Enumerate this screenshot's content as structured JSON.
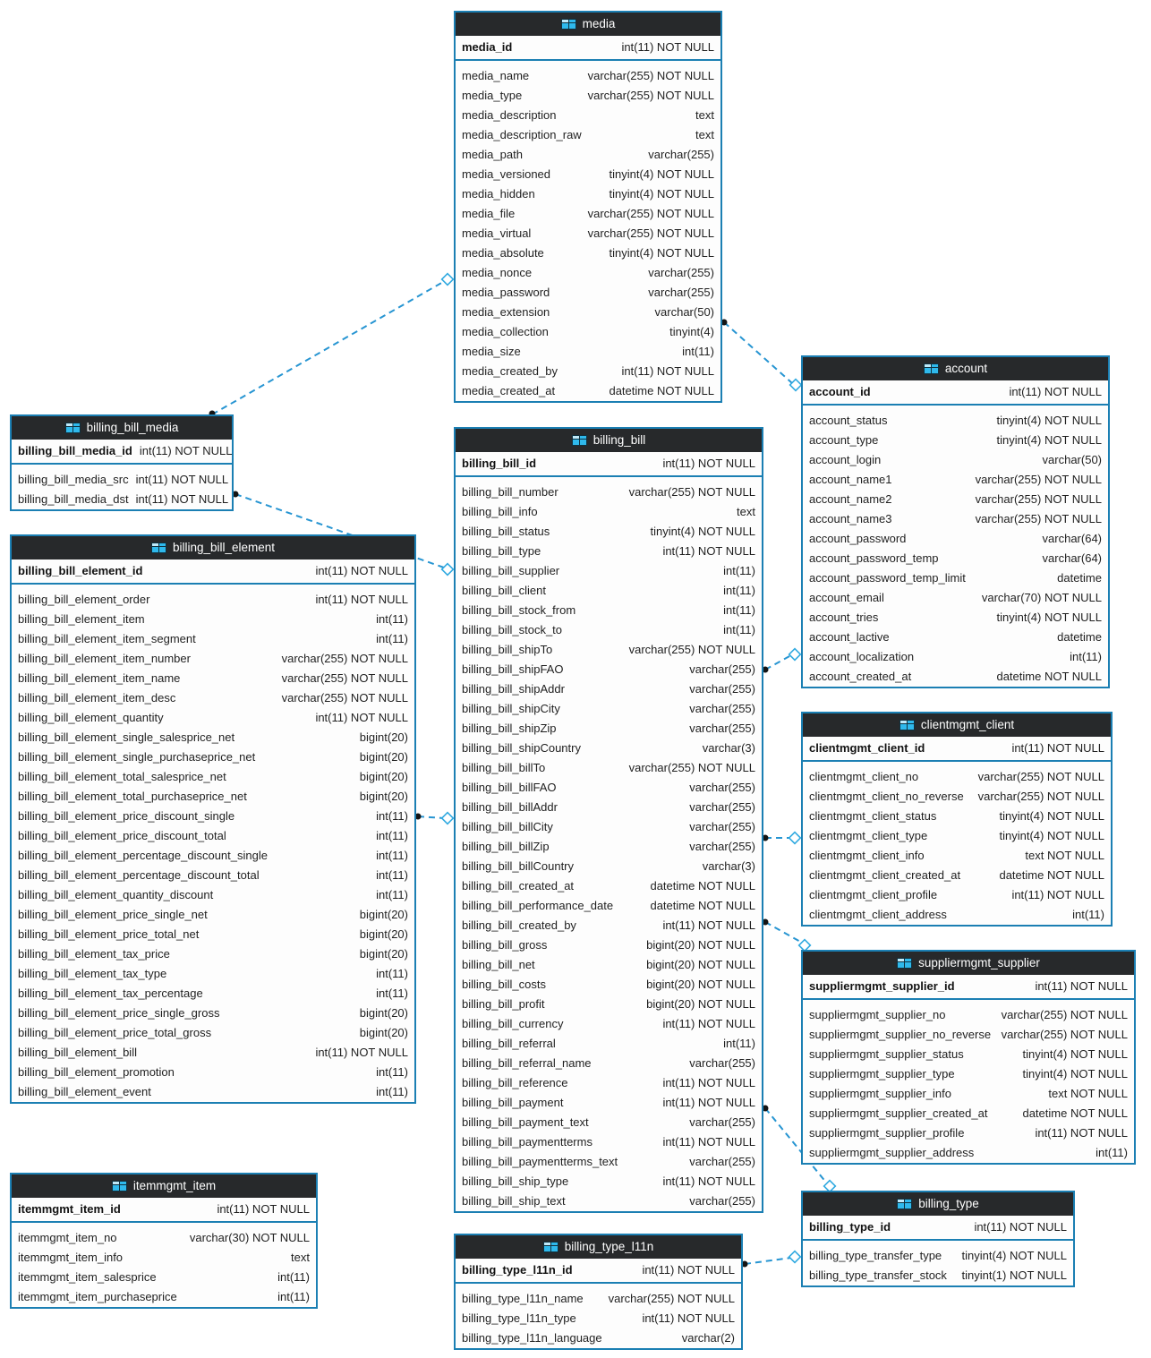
{
  "diagram": {
    "colors": {
      "table_border": "#1b7fb3",
      "header_background": "#27292b",
      "header_text": "#ffffff",
      "relationship_line": "#2795d2",
      "table_icon": "#2fb9ec",
      "row_text": "#1f1f1f"
    },
    "tables": [
      {
        "name": "media",
        "pk": {
          "name": "media_id",
          "type": "int(11) NOT NULL"
        },
        "fields": [
          {
            "name": "media_name",
            "type": "varchar(255) NOT NULL"
          },
          {
            "name": "media_type",
            "type": "varchar(255) NOT NULL"
          },
          {
            "name": "media_description",
            "type": "text"
          },
          {
            "name": "media_description_raw",
            "type": "text"
          },
          {
            "name": "media_path",
            "type": "varchar(255)"
          },
          {
            "name": "media_versioned",
            "type": "tinyint(4) NOT NULL"
          },
          {
            "name": "media_hidden",
            "type": "tinyint(4) NOT NULL"
          },
          {
            "name": "media_file",
            "type": "varchar(255) NOT NULL"
          },
          {
            "name": "media_virtual",
            "type": "varchar(255) NOT NULL"
          },
          {
            "name": "media_absolute",
            "type": "tinyint(4) NOT NULL"
          },
          {
            "name": "media_nonce",
            "type": "varchar(255)"
          },
          {
            "name": "media_password",
            "type": "varchar(255)"
          },
          {
            "name": "media_extension",
            "type": "varchar(50)"
          },
          {
            "name": "media_collection",
            "type": "tinyint(4)"
          },
          {
            "name": "media_size",
            "type": "int(11)"
          },
          {
            "name": "media_created_by",
            "type": "int(11) NOT NULL"
          },
          {
            "name": "media_created_at",
            "type": "datetime NOT NULL"
          }
        ]
      },
      {
        "name": "billing_bill_media",
        "pk": {
          "name": "billing_bill_media_id",
          "type": "int(11) NOT NULL"
        },
        "fields": [
          {
            "name": "billing_bill_media_src",
            "type": "int(11) NOT NULL"
          },
          {
            "name": "billing_bill_media_dst",
            "type": "int(11) NOT NULL"
          }
        ]
      },
      {
        "name": "billing_bill_element",
        "pk": {
          "name": "billing_bill_element_id",
          "type": "int(11) NOT NULL"
        },
        "fields": [
          {
            "name": "billing_bill_element_order",
            "type": "int(11) NOT NULL"
          },
          {
            "name": "billing_bill_element_item",
            "type": "int(11)"
          },
          {
            "name": "billing_bill_element_item_segment",
            "type": "int(11)"
          },
          {
            "name": "billing_bill_element_item_number",
            "type": "varchar(255) NOT NULL"
          },
          {
            "name": "billing_bill_element_item_name",
            "type": "varchar(255) NOT NULL"
          },
          {
            "name": "billing_bill_element_item_desc",
            "type": "varchar(255) NOT NULL"
          },
          {
            "name": "billing_bill_element_quantity",
            "type": "int(11) NOT NULL"
          },
          {
            "name": "billing_bill_element_single_salesprice_net",
            "type": "bigint(20)"
          },
          {
            "name": "billing_bill_element_single_purchaseprice_net",
            "type": "bigint(20)"
          },
          {
            "name": "billing_bill_element_total_salesprice_net",
            "type": "bigint(20)"
          },
          {
            "name": "billing_bill_element_total_purchaseprice_net",
            "type": "bigint(20)"
          },
          {
            "name": "billing_bill_element_price_discount_single",
            "type": "int(11)"
          },
          {
            "name": "billing_bill_element_price_discount_total",
            "type": "int(11)"
          },
          {
            "name": "billing_bill_element_percentage_discount_single",
            "type": "int(11)"
          },
          {
            "name": "billing_bill_element_percentage_discount_total",
            "type": "int(11)"
          },
          {
            "name": "billing_bill_element_quantity_discount",
            "type": "int(11)"
          },
          {
            "name": "billing_bill_element_price_single_net",
            "type": "bigint(20)"
          },
          {
            "name": "billing_bill_element_price_total_net",
            "type": "bigint(20)"
          },
          {
            "name": "billing_bill_element_tax_price",
            "type": "bigint(20)"
          },
          {
            "name": "billing_bill_element_tax_type",
            "type": "int(11)"
          },
          {
            "name": "billing_bill_element_tax_percentage",
            "type": "int(11)"
          },
          {
            "name": "billing_bill_element_price_single_gross",
            "type": "bigint(20)"
          },
          {
            "name": "billing_bill_element_price_total_gross",
            "type": "bigint(20)"
          },
          {
            "name": "billing_bill_element_bill",
            "type": "int(11) NOT NULL"
          },
          {
            "name": "billing_bill_element_promotion",
            "type": "int(11)"
          },
          {
            "name": "billing_bill_element_event",
            "type": "int(11)"
          }
        ]
      },
      {
        "name": "itemmgmt_item",
        "pk": {
          "name": "itemmgmt_item_id",
          "type": "int(11) NOT NULL"
        },
        "fields": [
          {
            "name": "itemmgmt_item_no",
            "type": "varchar(30) NOT NULL"
          },
          {
            "name": "itemmgmt_item_info",
            "type": "text"
          },
          {
            "name": "itemmgmt_item_salesprice",
            "type": "int(11)"
          },
          {
            "name": "itemmgmt_item_purchaseprice",
            "type": "int(11)"
          }
        ]
      },
      {
        "name": "billing_bill",
        "pk": {
          "name": "billing_bill_id",
          "type": "int(11) NOT NULL"
        },
        "fields": [
          {
            "name": "billing_bill_number",
            "type": "varchar(255) NOT NULL"
          },
          {
            "name": "billing_bill_info",
            "type": "text"
          },
          {
            "name": "billing_bill_status",
            "type": "tinyint(4) NOT NULL"
          },
          {
            "name": "billing_bill_type",
            "type": "int(11) NOT NULL"
          },
          {
            "name": "billing_bill_supplier",
            "type": "int(11)"
          },
          {
            "name": "billing_bill_client",
            "type": "int(11)"
          },
          {
            "name": "billing_bill_stock_from",
            "type": "int(11)"
          },
          {
            "name": "billing_bill_stock_to",
            "type": "int(11)"
          },
          {
            "name": "billing_bill_shipTo",
            "type": "varchar(255) NOT NULL"
          },
          {
            "name": "billing_bill_shipFAO",
            "type": "varchar(255)"
          },
          {
            "name": "billing_bill_shipAddr",
            "type": "varchar(255)"
          },
          {
            "name": "billing_bill_shipCity",
            "type": "varchar(255)"
          },
          {
            "name": "billing_bill_shipZip",
            "type": "varchar(255)"
          },
          {
            "name": "billing_bill_shipCountry",
            "type": "varchar(3)"
          },
          {
            "name": "billing_bill_billTo",
            "type": "varchar(255) NOT NULL"
          },
          {
            "name": "billing_bill_billFAO",
            "type": "varchar(255)"
          },
          {
            "name": "billing_bill_billAddr",
            "type": "varchar(255)"
          },
          {
            "name": "billing_bill_billCity",
            "type": "varchar(255)"
          },
          {
            "name": "billing_bill_billZip",
            "type": "varchar(255)"
          },
          {
            "name": "billing_bill_billCountry",
            "type": "varchar(3)"
          },
          {
            "name": "billing_bill_created_at",
            "type": "datetime NOT NULL"
          },
          {
            "name": "billing_bill_performance_date",
            "type": "datetime NOT NULL"
          },
          {
            "name": "billing_bill_created_by",
            "type": "int(11) NOT NULL"
          },
          {
            "name": "billing_bill_gross",
            "type": "bigint(20) NOT NULL"
          },
          {
            "name": "billing_bill_net",
            "type": "bigint(20) NOT NULL"
          },
          {
            "name": "billing_bill_costs",
            "type": "bigint(20) NOT NULL"
          },
          {
            "name": "billing_bill_profit",
            "type": "bigint(20) NOT NULL"
          },
          {
            "name": "billing_bill_currency",
            "type": "int(11) NOT NULL"
          },
          {
            "name": "billing_bill_referral",
            "type": "int(11)"
          },
          {
            "name": "billing_bill_referral_name",
            "type": "varchar(255)"
          },
          {
            "name": "billing_bill_reference",
            "type": "int(11) NOT NULL"
          },
          {
            "name": "billing_bill_payment",
            "type": "int(11) NOT NULL"
          },
          {
            "name": "billing_bill_payment_text",
            "type": "varchar(255)"
          },
          {
            "name": "billing_bill_paymentterms",
            "type": "int(11) NOT NULL"
          },
          {
            "name": "billing_bill_paymentterms_text",
            "type": "varchar(255)"
          },
          {
            "name": "billing_bill_ship_type",
            "type": "int(11) NOT NULL"
          },
          {
            "name": "billing_bill_ship_text",
            "type": "varchar(255)"
          }
        ]
      },
      {
        "name": "billing_type_l11n",
        "pk": {
          "name": "billing_type_l11n_id",
          "type": "int(11) NOT NULL"
        },
        "fields": [
          {
            "name": "billing_type_l11n_name",
            "type": "varchar(255) NOT NULL"
          },
          {
            "name": "billing_type_l11n_type",
            "type": "int(11) NOT NULL"
          },
          {
            "name": "billing_type_l11n_language",
            "type": "varchar(2)"
          }
        ]
      },
      {
        "name": "account",
        "pk": {
          "name": "account_id",
          "type": "int(11) NOT NULL"
        },
        "fields": [
          {
            "name": "account_status",
            "type": "tinyint(4) NOT NULL"
          },
          {
            "name": "account_type",
            "type": "tinyint(4) NOT NULL"
          },
          {
            "name": "account_login",
            "type": "varchar(50)"
          },
          {
            "name": "account_name1",
            "type": "varchar(255) NOT NULL"
          },
          {
            "name": "account_name2",
            "type": "varchar(255) NOT NULL"
          },
          {
            "name": "account_name3",
            "type": "varchar(255) NOT NULL"
          },
          {
            "name": "account_password",
            "type": "varchar(64)"
          },
          {
            "name": "account_password_temp",
            "type": "varchar(64)"
          },
          {
            "name": "account_password_temp_limit",
            "type": "datetime"
          },
          {
            "name": "account_email",
            "type": "varchar(70) NOT NULL"
          },
          {
            "name": "account_tries",
            "type": "tinyint(4) NOT NULL"
          },
          {
            "name": "account_lactive",
            "type": "datetime"
          },
          {
            "name": "account_localization",
            "type": "int(11)"
          },
          {
            "name": "account_created_at",
            "type": "datetime NOT NULL"
          }
        ]
      },
      {
        "name": "clientmgmt_client",
        "pk": {
          "name": "clientmgmt_client_id",
          "type": "int(11) NOT NULL"
        },
        "fields": [
          {
            "name": "clientmgmt_client_no",
            "type": "varchar(255) NOT NULL"
          },
          {
            "name": "clientmgmt_client_no_reverse",
            "type": "varchar(255) NOT NULL"
          },
          {
            "name": "clientmgmt_client_status",
            "type": "tinyint(4) NOT NULL"
          },
          {
            "name": "clientmgmt_client_type",
            "type": "tinyint(4) NOT NULL"
          },
          {
            "name": "clientmgmt_client_info",
            "type": "text NOT NULL"
          },
          {
            "name": "clientmgmt_client_created_at",
            "type": "datetime NOT NULL"
          },
          {
            "name": "clientmgmt_client_profile",
            "type": "int(11) NOT NULL"
          },
          {
            "name": "clientmgmt_client_address",
            "type": "int(11)"
          }
        ]
      },
      {
        "name": "suppliermgmt_supplier",
        "pk": {
          "name": "suppliermgmt_supplier_id",
          "type": "int(11) NOT NULL"
        },
        "fields": [
          {
            "name": "suppliermgmt_supplier_no",
            "type": "varchar(255) NOT NULL"
          },
          {
            "name": "suppliermgmt_supplier_no_reverse",
            "type": "varchar(255) NOT NULL"
          },
          {
            "name": "suppliermgmt_supplier_status",
            "type": "tinyint(4) NOT NULL"
          },
          {
            "name": "suppliermgmt_supplier_type",
            "type": "tinyint(4) NOT NULL"
          },
          {
            "name": "suppliermgmt_supplier_info",
            "type": "text NOT NULL"
          },
          {
            "name": "suppliermgmt_supplier_created_at",
            "type": "datetime NOT NULL"
          },
          {
            "name": "suppliermgmt_supplier_profile",
            "type": "int(11) NOT NULL"
          },
          {
            "name": "suppliermgmt_supplier_address",
            "type": "int(11)"
          }
        ]
      },
      {
        "name": "billing_type",
        "pk": {
          "name": "billing_type_id",
          "type": "int(11) NOT NULL"
        },
        "fields": [
          {
            "name": "billing_type_transfer_type",
            "type": "tinyint(4) NOT NULL"
          },
          {
            "name": "billing_type_transfer_stock",
            "type": "tinyint(1) NOT NULL"
          }
        ]
      }
    ],
    "relationships": [
      {
        "from": "billing_bill_media",
        "to": "media"
      },
      {
        "from": "billing_bill_media",
        "to": "billing_bill"
      },
      {
        "from": "media",
        "to": "account"
      },
      {
        "from": "billing_bill",
        "to": "account"
      },
      {
        "from": "billing_bill",
        "to": "clientmgmt_client"
      },
      {
        "from": "billing_bill",
        "to": "suppliermgmt_supplier"
      },
      {
        "from": "billing_bill",
        "to": "billing_type"
      },
      {
        "from": "billing_type_l11n",
        "to": "billing_type"
      },
      {
        "from": "billing_bill_element",
        "to": "billing_bill"
      }
    ]
  }
}
